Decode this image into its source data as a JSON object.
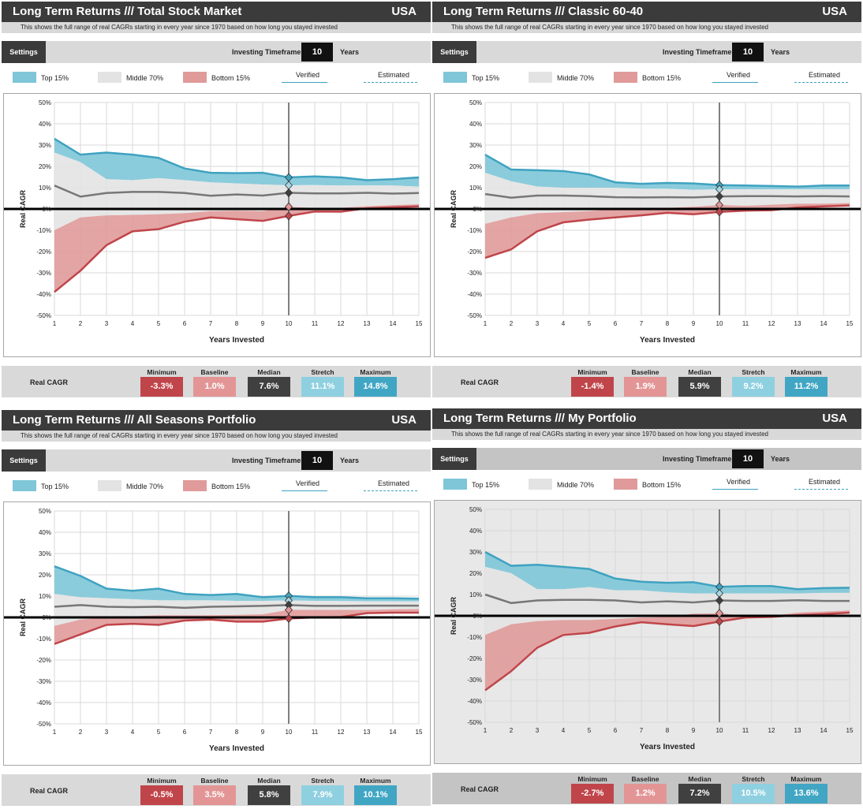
{
  "colors": {
    "top": "#7ec6d8",
    "middle": "#e3e3e3",
    "bottom": "#e09a9a",
    "top_line": "#3fa2c0",
    "bottom_line": "#c0454a",
    "median_line": "#777777",
    "min": "#c0454a",
    "baseline": "#e39595",
    "median": "#404040",
    "stretch": "#8fd0e0",
    "max": "#41a6c4"
  },
  "common": {
    "settings_label": "Settings",
    "timeframe_label": "Investing Timeframe",
    "timeframe_value": "10",
    "timeframe_unit": "Years",
    "legend_top": "Top 15%",
    "legend_middle": "Middle 70%",
    "legend_bottom": "Bottom 15%",
    "legend_verified": "Verified",
    "legend_estimated": "Estimated",
    "stats_label": "Real CAGR",
    "stat_headers": [
      "Minimum",
      "Baseline",
      "Median",
      "Stretch",
      "Maximum"
    ]
  },
  "panels": [
    {
      "title": "Long Term Returns /// Total Stock Market",
      "country": "USA",
      "subtitle": "This shows the full range of real CAGRs starting in every year since 1970 based on how long you stayed invested",
      "stats": [
        "-3.3%",
        "1.0%",
        "7.6%",
        "11.1%",
        "14.8%"
      ]
    },
    {
      "title": "Long Term Returns /// Classic 60-40",
      "country": "USA",
      "subtitle": "This shows the full range of real CAGRs starting in every year since 1970 based on how long you stayed invested",
      "stats": [
        "-1.4%",
        "1.9%",
        "5.9%",
        "9.2%",
        "11.2%"
      ]
    },
    {
      "title": "Long Term Returns /// All Seasons Portfolio",
      "country": "USA",
      "subtitle": "This shows the full range of real CAGRs starting in every year since 1970 based on how long you stayed invested",
      "stats": [
        "-0.5%",
        "3.5%",
        "5.8%",
        "7.9%",
        "10.1%"
      ]
    },
    {
      "title": "Long Term Returns /// My Portfolio",
      "country": "USA",
      "subtitle": "This shows the full range of real CAGRs starting in every year since 1970 based on how long you stayed invested",
      "stats": [
        "-2.7%",
        "1.2%",
        "7.2%",
        "10.5%",
        "13.6%"
      ]
    }
  ],
  "chart_data": [
    {
      "type": "area",
      "xlabel": "Years Invested",
      "ylabel": "Real CAGR",
      "x": [
        1,
        2,
        3,
        4,
        5,
        6,
        7,
        8,
        9,
        10,
        11,
        12,
        13,
        14,
        15
      ],
      "ylim": [
        -50,
        50
      ],
      "y_ticks": [
        "50%",
        "40%",
        "30%",
        "20%",
        "10%",
        "0%",
        "-10%",
        "-20%",
        "-30%",
        "-40%",
        "-50%"
      ],
      "marker_x": 10,
      "series": [
        {
          "name": "Maximum",
          "values": [
            33,
            25.5,
            26.5,
            25.5,
            24,
            19,
            17,
            16.8,
            17,
            14.8,
            15.3,
            14.8,
            13.5,
            14,
            14.8
          ]
        },
        {
          "name": "Top 15%",
          "values": [
            26.5,
            22,
            14,
            13.5,
            14.5,
            13.5,
            12.5,
            12,
            11.5,
            11.1,
            11.2,
            11,
            11,
            11,
            10.5
          ]
        },
        {
          "name": "Median",
          "values": [
            11,
            5.8,
            7.5,
            8,
            8,
            7.5,
            6.2,
            6.8,
            6.3,
            7.6,
            7.3,
            7.3,
            7.6,
            7.2,
            7.5
          ]
        },
        {
          "name": "Bottom 15%",
          "values": [
            -10,
            -4,
            -3,
            -2.8,
            -2.5,
            -2,
            -1,
            -0.8,
            -1,
            1,
            0.5,
            0.5,
            1.3,
            1.8,
            2.2
          ]
        },
        {
          "name": "Minimum",
          "values": [
            -39,
            -29,
            -17,
            -10.5,
            -9.5,
            -6,
            -4,
            -4.8,
            -5.6,
            -3.3,
            -1.2,
            -1.3,
            0.3,
            0.8,
            1.2
          ]
        }
      ]
    },
    {
      "type": "area",
      "xlabel": "Years Invested",
      "ylabel": "Real CAGR",
      "x": [
        1,
        2,
        3,
        4,
        5,
        6,
        7,
        8,
        9,
        10,
        11,
        12,
        13,
        14,
        15
      ],
      "ylim": [
        -50,
        50
      ],
      "y_ticks": [
        "50%",
        "40%",
        "30%",
        "20%",
        "10%",
        "0%",
        "-10%",
        "-20%",
        "-30%",
        "-40%",
        "-50%"
      ],
      "marker_x": 10,
      "series": [
        {
          "name": "Maximum",
          "values": [
            25.5,
            18.5,
            18.2,
            17.8,
            16.2,
            12.5,
            11.8,
            12.2,
            12,
            11.2,
            11,
            10.8,
            10.5,
            11,
            11
          ]
        },
        {
          "name": "Top 15%",
          "values": [
            17,
            13,
            10.5,
            10,
            10,
            10,
            9.5,
            9.5,
            9,
            9.2,
            9.2,
            9.2,
            9.2,
            9.2,
            9.2
          ]
        },
        {
          "name": "Median",
          "values": [
            7,
            5.3,
            6.3,
            6.3,
            6,
            5.5,
            5.4,
            5.5,
            5.4,
            5.9,
            6,
            6,
            5.9,
            6,
            5.9
          ]
        },
        {
          "name": "Bottom 15%",
          "values": [
            -7,
            -4,
            -2,
            -1.5,
            -1,
            0,
            0,
            0.5,
            1,
            1.9,
            1.5,
            2,
            2.5,
            2.5,
            2.8
          ]
        },
        {
          "name": "Minimum",
          "values": [
            -23,
            -19,
            -10.5,
            -6.3,
            -5,
            -4,
            -3,
            -1.8,
            -2.5,
            -1.4,
            -0.8,
            -0.6,
            0.7,
            1.2,
            1.6
          ]
        }
      ]
    },
    {
      "type": "area",
      "xlabel": "Years Invested",
      "ylabel": "Real CAGR",
      "x": [
        1,
        2,
        3,
        4,
        5,
        6,
        7,
        8,
        9,
        10,
        11,
        12,
        13,
        14,
        15
      ],
      "ylim": [
        -50,
        50
      ],
      "y_ticks": [
        "50%",
        "40%",
        "30%",
        "20%",
        "10%",
        "0%",
        "-10%",
        "-20%",
        "-30%",
        "-40%",
        "-50%"
      ],
      "marker_x": 10,
      "series": [
        {
          "name": "Maximum",
          "values": [
            24,
            19.5,
            13.5,
            12.5,
            13.5,
            11,
            10.5,
            11,
            9.5,
            10.1,
            9.5,
            9.5,
            9,
            9,
            8.8
          ]
        },
        {
          "name": "Top 15%",
          "values": [
            11,
            9.5,
            9,
            8.5,
            8,
            8,
            8,
            7.8,
            7.8,
            7.9,
            7.8,
            7.7,
            7.6,
            7.5,
            7.5
          ]
        },
        {
          "name": "Median",
          "values": [
            5,
            5.8,
            5,
            4.8,
            5,
            4.5,
            5,
            5.2,
            5.4,
            5.8,
            5.4,
            5.4,
            5.5,
            5.5,
            5.5
          ]
        },
        {
          "name": "Bottom 15%",
          "values": [
            -4,
            -1,
            0,
            0.5,
            1,
            1,
            1,
            1.2,
            1.5,
            3.5,
            3.5,
            3.5,
            3.5,
            3.8,
            4
          ]
        },
        {
          "name": "Minimum",
          "values": [
            -12.5,
            -8,
            -3.5,
            -3,
            -3.5,
            -1.5,
            -1,
            -2,
            -2,
            -0.5,
            0,
            0.2,
            2,
            2.2,
            2.2
          ]
        }
      ]
    },
    {
      "type": "area",
      "xlabel": "Years Invested",
      "ylabel": "Real CAGR",
      "x": [
        1,
        2,
        3,
        4,
        5,
        6,
        7,
        8,
        9,
        10,
        11,
        12,
        13,
        14,
        15
      ],
      "ylim": [
        -50,
        50
      ],
      "y_ticks": [
        "50%",
        "40%",
        "30%",
        "20%",
        "10%",
        "0%",
        "-10%",
        "-20%",
        "-30%",
        "-40%",
        "-50%"
      ],
      "marker_x": 10,
      "series": [
        {
          "name": "Maximum",
          "values": [
            30,
            23.5,
            24,
            23,
            22,
            17.5,
            16,
            15.5,
            15.8,
            13.6,
            14,
            14,
            12.5,
            13,
            13.2
          ]
        },
        {
          "name": "Top 15%",
          "values": [
            23,
            20,
            12.5,
            12.5,
            13.5,
            12,
            12,
            11,
            10.5,
            10.5,
            10.5,
            10.5,
            10.5,
            10.8,
            10.8
          ]
        },
        {
          "name": "Median",
          "values": [
            10,
            6,
            7.2,
            7.5,
            7.5,
            7.2,
            6.3,
            6.8,
            6.3,
            7.2,
            7,
            7,
            7.3,
            7,
            7
          ]
        },
        {
          "name": "Bottom 15%",
          "values": [
            -9,
            -4,
            -2.5,
            -2,
            -2,
            -1.5,
            -0.8,
            -0.5,
            1,
            1.2,
            0,
            0,
            1.5,
            2,
            2.5
          ]
        },
        {
          "name": "Minimum",
          "values": [
            -35,
            -26,
            -15,
            -9,
            -8,
            -5,
            -3,
            -4,
            -4.8,
            -2.7,
            -0.8,
            -0.5,
            0.3,
            0.8,
            1.5
          ]
        }
      ]
    }
  ]
}
